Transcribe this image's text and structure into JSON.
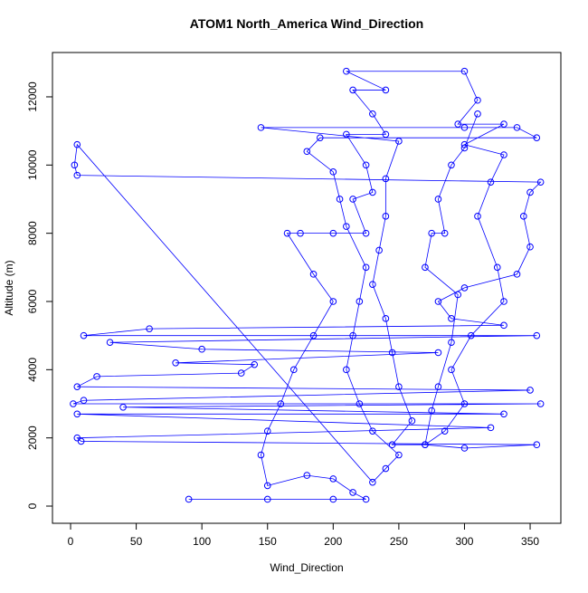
{
  "chart_data": {
    "type": "line",
    "marker": "open-circle",
    "title": "ATOM1 North_America Wind_Direction",
    "x_label": "Wind_Direction",
    "y_label": "Altitude (m)",
    "color": "#0000ff",
    "xlim": [
      -13.8,
      373.4
    ],
    "ylim": [
      -504,
      13300
    ],
    "xticks": [
      0,
      50,
      100,
      150,
      200,
      250,
      300,
      350
    ],
    "yticks": [
      0,
      2000,
      4000,
      6000,
      8000,
      10000,
      12000
    ],
    "x": [
      90,
      150,
      200,
      225,
      215,
      200,
      180,
      150,
      145,
      150,
      160,
      170,
      185,
      200,
      185,
      165,
      175,
      200,
      225,
      215,
      230,
      225,
      210,
      240,
      230,
      215,
      240,
      210,
      300,
      310,
      295,
      330,
      300,
      330,
      320,
      310,
      325,
      330,
      305,
      290,
      300,
      285,
      270,
      245,
      260,
      250,
      245,
      240,
      230,
      235,
      240,
      240,
      250,
      145,
      300,
      340,
      355,
      190,
      180,
      200,
      205,
      210,
      225,
      220,
      215,
      210,
      220,
      230,
      250,
      240,
      230,
      5,
      3,
      5,
      358,
      350,
      345,
      350,
      340,
      300,
      280,
      290,
      330,
      60,
      10,
      355,
      30,
      100,
      280,
      80,
      140,
      130,
      20,
      5,
      350,
      10,
      2,
      358,
      40,
      330,
      5,
      320,
      5,
      8,
      355,
      300,
      270,
      275,
      280,
      290,
      295,
      270,
      275,
      285,
      280,
      290,
      300,
      310
    ],
    "values": [
      200,
      200,
      200,
      200,
      400,
      800,
      900,
      600,
      1500,
      2200,
      3000,
      4000,
      5000,
      6000,
      6800,
      8000,
      8000,
      8000,
      8000,
      9000,
      9200,
      10000,
      10900,
      10900,
      11500,
      12200,
      12200,
      12750,
      12750,
      11900,
      11200,
      11200,
      10600,
      10300,
      9500,
      8500,
      7000,
      6000,
      5000,
      4000,
      3000,
      2200,
      1800,
      1800,
      2500,
      3500,
      4500,
      5500,
      6500,
      7500,
      8500,
      9600,
      10700,
      11100,
      11100,
      11100,
      10800,
      10800,
      10400,
      9800,
      9000,
      8200,
      7000,
      6000,
      5000,
      4000,
      3000,
      2200,
      1500,
      1100,
      700,
      10600,
      10000,
      9700,
      9500,
      9200,
      8500,
      7600,
      6800,
      6400,
      6000,
      5500,
      5300,
      5200,
      5000,
      5000,
      4800,
      4600,
      4500,
      4200,
      4150,
      3900,
      3800,
      3500,
      3400,
      3100,
      3000,
      3000,
      2900,
      2700,
      2700,
      2300,
      2000,
      1900,
      1800,
      1700,
      1800,
      2800,
      3500,
      4800,
      6200,
      7000,
      8000,
      8000,
      9000,
      10000,
      10500,
      11500
    ]
  }
}
